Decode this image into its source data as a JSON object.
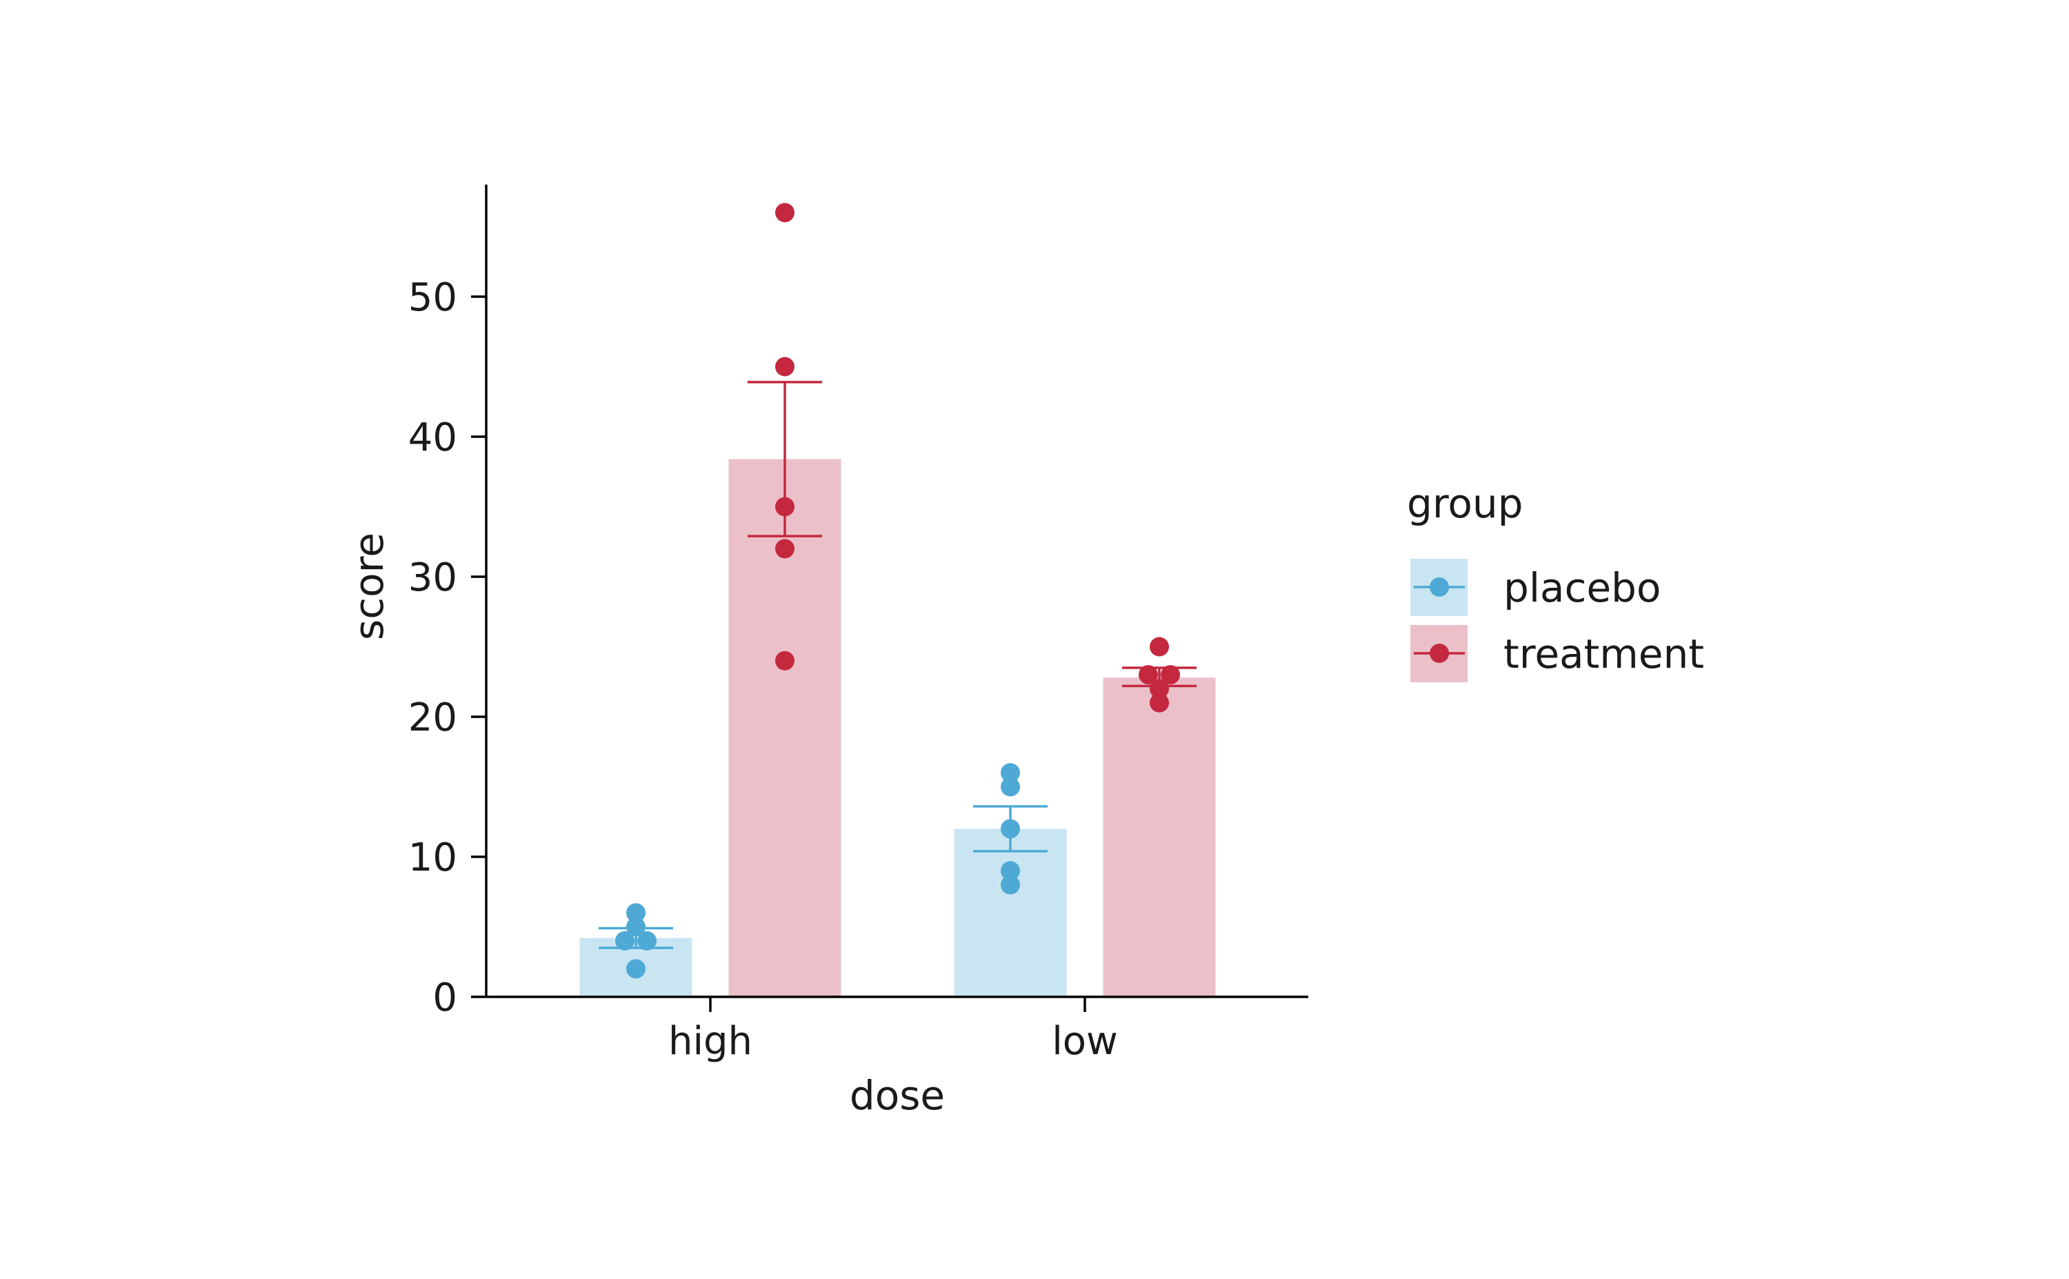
{
  "chart_data": {
    "type": "bar",
    "xlabel": "dose",
    "ylabel": "score",
    "categories": [
      "high",
      "low"
    ],
    "ylim": [
      0,
      58
    ],
    "yticks": [
      0,
      10,
      20,
      30,
      40,
      50
    ],
    "grid": false,
    "legend": {
      "title": "group",
      "placement": "right"
    },
    "series": [
      {
        "name": "placebo",
        "color": "#4ea9d5",
        "bar_color": "#c9e5f2",
        "values": [
          4.2,
          12.0
        ],
        "errors": [
          [
            3.5,
            4.9
          ],
          [
            10.4,
            13.6
          ]
        ],
        "points": [
          [
            6,
            5,
            4,
            4,
            2
          ],
          [
            16,
            15,
            12,
            9,
            8
          ]
        ]
      },
      {
        "name": "treatment",
        "color": "#c3283f",
        "bar_color": "#ecc0c8",
        "values": [
          38.4,
          22.8
        ],
        "errors": [
          [
            32.9,
            43.9
          ],
          [
            22.2,
            23.5
          ]
        ],
        "points": [
          [
            56,
            45,
            35,
            32,
            24
          ],
          [
            25,
            23,
            23,
            22,
            21
          ]
        ]
      }
    ]
  }
}
